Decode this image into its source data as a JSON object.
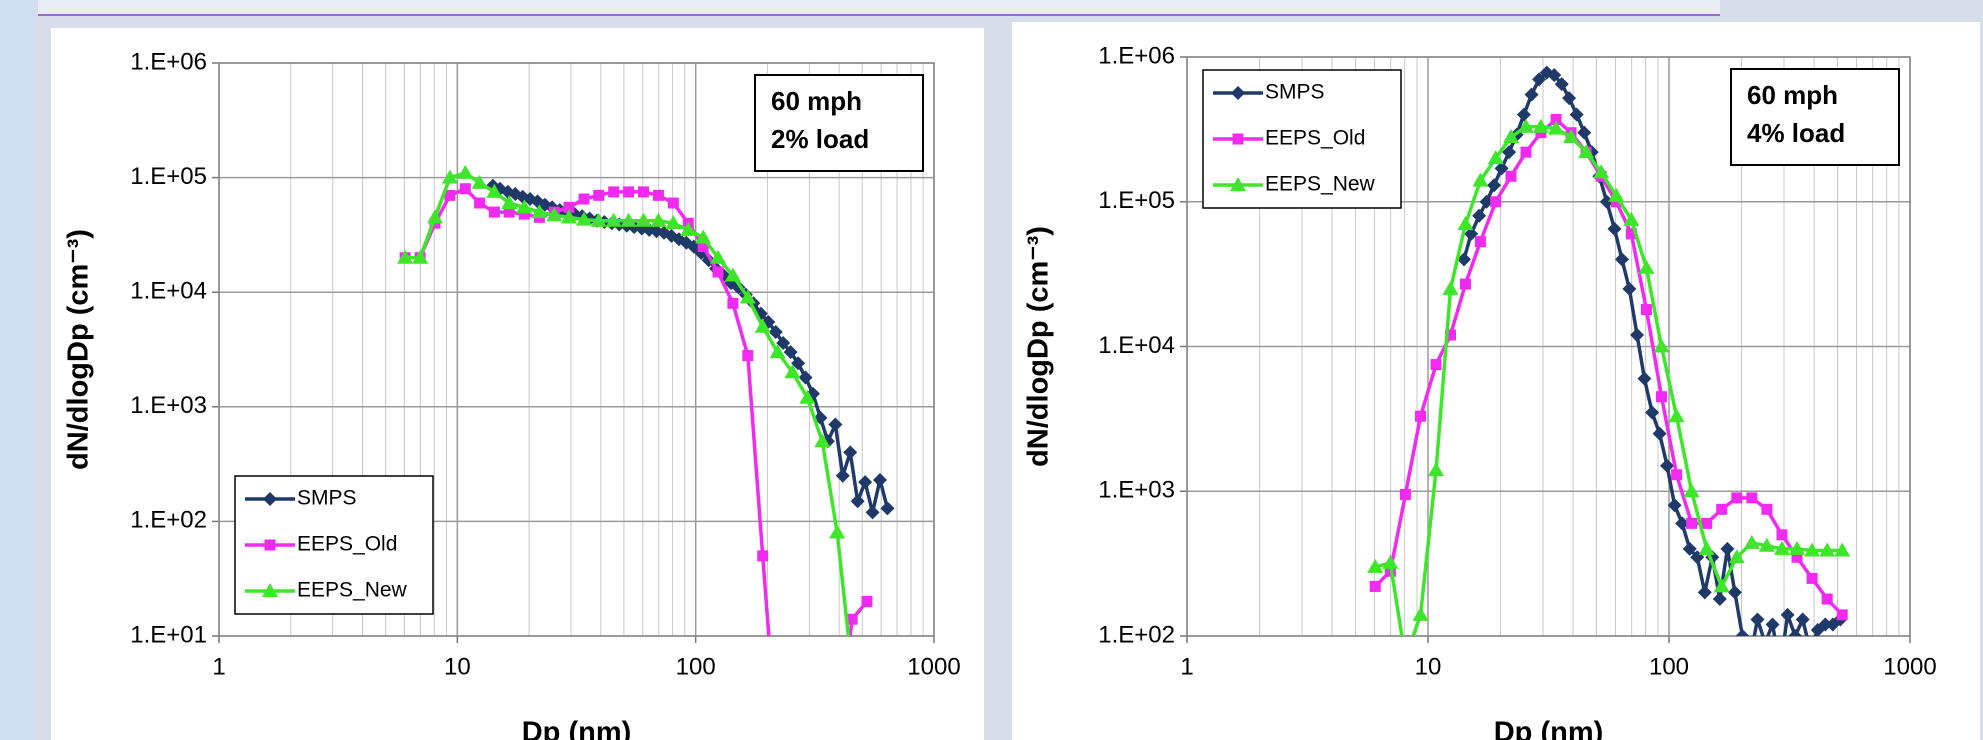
{
  "chart_data": [
    {
      "type": "line",
      "log_x": true,
      "log_y": true,
      "grid": true,
      "x_minor_grid": true,
      "legend": "lower left",
      "x_label": "Dp (nm)",
      "y_label": "dN/dlogDp (cm⁻³)",
      "annotation": [
        "60 mph",
        "2% load"
      ],
      "xlim": [
        1,
        1000
      ],
      "xticks": [
        1,
        10,
        100,
        1000
      ],
      "ylim": [
        10,
        1000000
      ],
      "yticks": [
        {
          "value": 10,
          "label": "1.E+01"
        },
        {
          "value": 100,
          "label": "1.E+02"
        },
        {
          "value": 1000,
          "label": "1.E+03"
        },
        {
          "value": 10000,
          "label": "1.E+04"
        },
        {
          "value": 100000,
          "label": "1.E+05"
        },
        {
          "value": 1000000,
          "label": "1.E+06"
        }
      ],
      "series": [
        {
          "name": "SMPS",
          "color": "#1f3a68",
          "marker": "diamond",
          "x": [
            14.1,
            15.1,
            16.3,
            17.5,
            18.8,
            20.2,
            21.7,
            23.3,
            25.0,
            26.9,
            28.9,
            31.1,
            33.4,
            35.9,
            38.5,
            41.4,
            44.5,
            47.8,
            51.4,
            55.2,
            59.4,
            63.8,
            68.5,
            73.7,
            79.1,
            85.1,
            91.4,
            98.2,
            105.5,
            113.4,
            121.9,
            131.0,
            140.7,
            151.2,
            162.5,
            174.7,
            187.7,
            201.7,
            216.7,
            232.9,
            250.3,
            269.0,
            289.0,
            310.6,
            333.8,
            358.7,
            385.5,
            414.2,
            445.1,
            478.3,
            514.0,
            552.3,
            593.5,
            637.8
          ],
          "values": [
            85000,
            80000,
            75000,
            72000,
            68000,
            65000,
            62000,
            58000,
            55000,
            52000,
            50000,
            48000,
            46000,
            44000,
            42000,
            41000,
            40000,
            39000,
            38000,
            37000,
            36000,
            35000,
            34000,
            33000,
            31000,
            29000,
            27000,
            25000,
            22000,
            19000,
            16000,
            14000,
            12000,
            11000,
            9500,
            8000,
            6500,
            5500,
            4500,
            3600,
            3000,
            2400,
            1800,
            1300,
            800,
            500,
            700,
            250,
            400,
            150,
            220,
            120,
            230,
            130
          ]
        },
        {
          "name": "EEPS_Old",
          "color": "#f02af0",
          "marker": "square",
          "x": [
            6.04,
            6.98,
            8.06,
            9.31,
            10.8,
            12.4,
            14.3,
            16.5,
            19.1,
            22.1,
            25.5,
            29.4,
            34.0,
            39.2,
            45.3,
            52.3,
            60.4,
            69.8,
            80.6,
            93.1,
            107.5,
            124.1,
            143.3,
            165.5,
            191.1,
            220.7,
            254.8,
            294.3,
            339.8,
            392.4,
            453.2,
            523.3
          ],
          "values": [
            20000,
            20000,
            40000,
            70000,
            80000,
            60000,
            50000,
            50000,
            48000,
            45000,
            50000,
            55000,
            65000,
            70000,
            75000,
            75000,
            75000,
            70000,
            60000,
            40000,
            25000,
            15000,
            8000,
            2800,
            50,
            1,
            null,
            null,
            null,
            1,
            14,
            20
          ]
        },
        {
          "name": "EEPS_New",
          "color": "#3ee62a",
          "marker": "triangle",
          "x": [
            6.04,
            6.98,
            8.06,
            9.31,
            10.8,
            12.4,
            14.3,
            16.5,
            19.1,
            22.1,
            25.5,
            29.4,
            34.0,
            39.2,
            45.3,
            52.3,
            60.4,
            69.8,
            80.6,
            93.1,
            107.5,
            124.1,
            143.3,
            165.5,
            191.1,
            220.7,
            254.8,
            294.3,
            339.8,
            392.4,
            453.2
          ],
          "values": [
            20000,
            20000,
            45000,
            100000,
            110000,
            90000,
            75000,
            60000,
            55000,
            50000,
            47000,
            45000,
            43000,
            42000,
            42000,
            42000,
            42000,
            42000,
            40000,
            35000,
            30000,
            20000,
            14000,
            9000,
            5000,
            3000,
            2000,
            1200,
            500,
            80,
            5
          ]
        }
      ]
    },
    {
      "type": "line",
      "log_x": true,
      "log_y": true,
      "grid": true,
      "x_minor_grid": true,
      "legend": "upper left",
      "x_label": "Dp (nm)",
      "y_label": "dN/dlogDp (cm⁻³)",
      "annotation": [
        "60 mph",
        "4% load"
      ],
      "xlim": [
        1,
        1000
      ],
      "xticks": [
        1,
        10,
        100,
        1000
      ],
      "ylim": [
        100,
        1000000
      ],
      "yticks": [
        {
          "value": 100,
          "label": "1.E+02"
        },
        {
          "value": 1000,
          "label": "1.E+03"
        },
        {
          "value": 10000,
          "label": "1.E+04"
        },
        {
          "value": 100000,
          "label": "1.E+05"
        },
        {
          "value": 1000000,
          "label": "1.E+06"
        }
      ],
      "series": [
        {
          "name": "SMPS",
          "color": "#1f3a68",
          "marker": "diamond",
          "x": [
            14.1,
            15.1,
            16.3,
            17.5,
            18.8,
            20.2,
            21.7,
            23.3,
            25.0,
            26.9,
            28.9,
            31.1,
            33.4,
            35.9,
            38.5,
            41.4,
            44.5,
            47.8,
            51.4,
            55.2,
            59.4,
            63.8,
            68.5,
            73.7,
            79.1,
            85.1,
            91.4,
            98.2,
            105.5,
            113.4,
            121.9,
            131.0,
            140.7,
            151.2,
            162.5,
            174.7,
            187.7,
            201.7,
            216.7,
            232.9,
            250.3,
            269.0,
            289.0,
            310.6,
            333.8,
            358.7,
            385.5,
            414.2,
            445.1,
            478.3,
            514.0
          ],
          "values": [
            40000,
            60000,
            80000,
            100000,
            130000,
            170000,
            220000,
            290000,
            400000,
            550000,
            700000,
            780000,
            750000,
            650000,
            520000,
            400000,
            300000,
            220000,
            150000,
            100000,
            65000,
            40000,
            25000,
            12000,
            6000,
            3500,
            2500,
            1500,
            800,
            600,
            400,
            350,
            200,
            350,
            180,
            400,
            200,
            100,
            70,
            130,
            90,
            120,
            60,
            140,
            100,
            130,
            80,
            110,
            120,
            120,
            130
          ]
        },
        {
          "name": "EEPS_Old",
          "color": "#f02af0",
          "marker": "square",
          "x": [
            6.04,
            6.98,
            8.06,
            9.31,
            10.8,
            12.4,
            14.3,
            16.5,
            19.1,
            22.1,
            25.5,
            29.4,
            34.0,
            39.2,
            45.3,
            52.3,
            60.4,
            69.8,
            80.6,
            93.1,
            107.5,
            124.1,
            143.3,
            165.5,
            191.1,
            220.7,
            254.8,
            294.3,
            339.8,
            392.4,
            453.2,
            523.3
          ],
          "values": [
            220,
            280,
            950,
            3300,
            7500,
            12000,
            27000,
            53000,
            100000,
            150000,
            220000,
            300000,
            370000,
            300000,
            220000,
            150000,
            100000,
            60000,
            18000,
            4500,
            1300,
            600,
            600,
            750,
            900,
            900,
            750,
            500,
            350,
            250,
            180,
            140
          ]
        },
        {
          "name": "EEPS_New",
          "color": "#3ee62a",
          "marker": "triangle",
          "x": [
            6.04,
            6.98,
            8.06,
            9.31,
            10.8,
            12.4,
            14.3,
            16.5,
            19.1,
            22.1,
            25.5,
            29.4,
            34.0,
            39.2,
            45.3,
            52.3,
            60.4,
            69.8,
            80.6,
            93.1,
            107.5,
            124.1,
            143.3,
            165.5,
            191.1,
            220.7,
            254.8,
            294.3,
            339.8,
            392.4,
            453.2,
            523.3
          ],
          "values": [
            300,
            320,
            70,
            140,
            1400,
            25000,
            70000,
            140000,
            200000,
            280000,
            330000,
            330000,
            320000,
            280000,
            220000,
            160000,
            110000,
            75000,
            35000,
            10000,
            3300,
            1000,
            400,
            220,
            350,
            440,
            420,
            400,
            400,
            390,
            390,
            390
          ]
        }
      ]
    }
  ]
}
